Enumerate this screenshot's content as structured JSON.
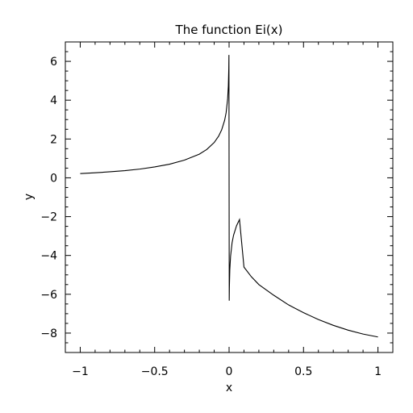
{
  "chart_data": {
    "type": "line",
    "title": "The function Ei(x)",
    "xlabel": "x",
    "ylabel": "y",
    "xlim": [
      -1.1,
      1.1
    ],
    "ylim": [
      -9,
      7
    ],
    "grid": false,
    "x_ticks": [
      -1,
      -0.5,
      0,
      0.5,
      1
    ],
    "x_tick_labels": [
      "−1",
      "−0.5",
      "0",
      "0.5",
      "1"
    ],
    "y_ticks": [
      -8,
      -6,
      -4,
      -2,
      0,
      2,
      4,
      6
    ],
    "y_tick_labels": [
      "−8",
      "−6",
      "−4",
      "−2",
      "0",
      "2",
      "4",
      "6"
    ],
    "series": [
      {
        "color": "#000000",
        "x": [
          -1,
          -0.9,
          -0.8,
          -0.7,
          -0.6,
          -0.5,
          -0.4,
          -0.3,
          -0.2,
          -0.15,
          -0.1,
          -0.07,
          -0.05,
          -0.03,
          -0.02,
          -0.01,
          -0.005,
          -0.002,
          -0.001,
          0.001,
          0.002,
          0.005,
          0.01,
          0.02,
          0.03,
          0.05,
          0.07,
          0.1,
          0.15,
          0.2,
          0.3,
          0.4,
          0.5,
          0.6,
          0.7,
          0.8,
          0.9,
          1
        ],
        "y": [
          0.22,
          0.26,
          0.31,
          0.37,
          0.45,
          0.56,
          0.7,
          0.91,
          1.22,
          1.46,
          1.82,
          2.15,
          2.47,
          2.96,
          3.35,
          4.04,
          4.73,
          5.65,
          6.33,
          -6.33,
          -5.65,
          -4.73,
          -4.04,
          -3.35,
          -2.96,
          -2.47,
          -2.15,
          -4.6,
          -5.1,
          -5.5,
          -6.05,
          -6.55,
          -6.95,
          -7.3,
          -7.6,
          -7.85,
          -8.05,
          -8.2
        ]
      }
    ]
  }
}
